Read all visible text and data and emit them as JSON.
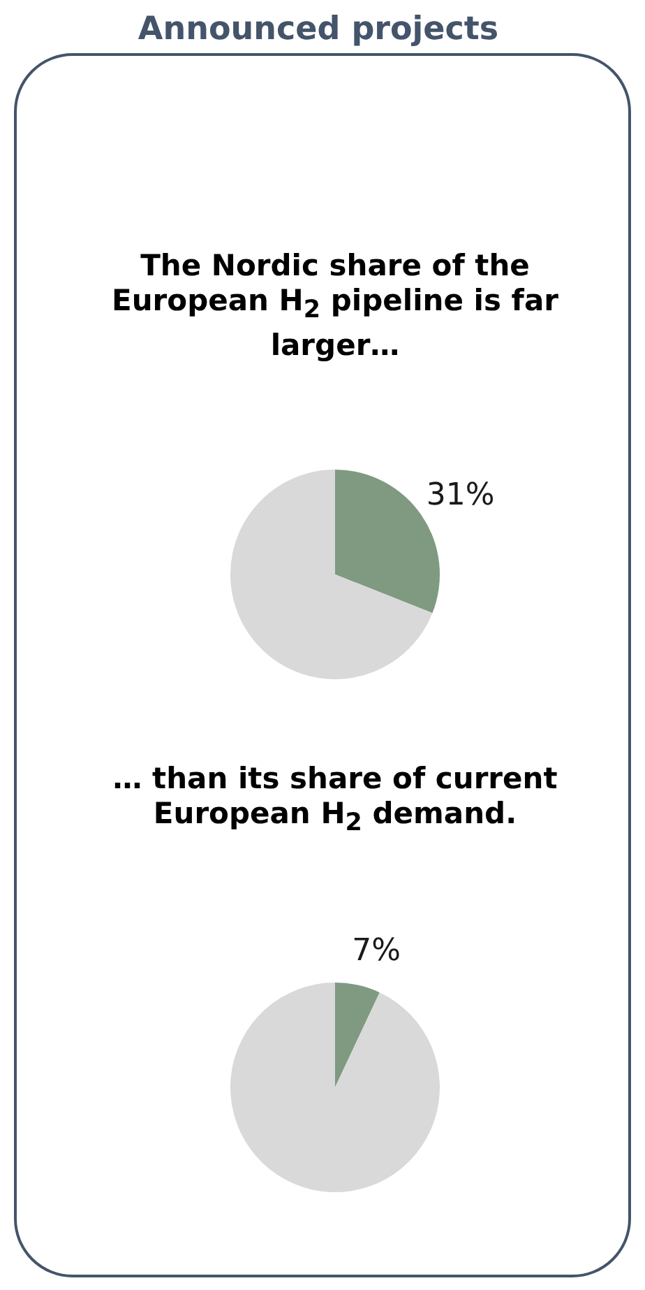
{
  "chart_data": [
    {
      "type": "other",
      "title": "Announced projects"
    },
    {
      "type": "pie",
      "title": "The Nordic share of the European H$_{2}$ pipeline is far larger…",
      "categories": [
        null,
        null
      ],
      "values": [
        31,
        69
      ],
      "colors": [
        "#7f9a80",
        "#d9d9d9"
      ],
      "value_labels": [
        "31%",
        null
      ]
    },
    {
      "type": "pie",
      "title": "… than its share of current European H$_{2}$ demand.",
      "categories": [
        null,
        null
      ],
      "values": [
        7,
        93
      ],
      "colors": [
        "#7f9a80",
        "#d9d9d9"
      ],
      "value_labels": [
        "7%",
        null
      ]
    }
  ]
}
